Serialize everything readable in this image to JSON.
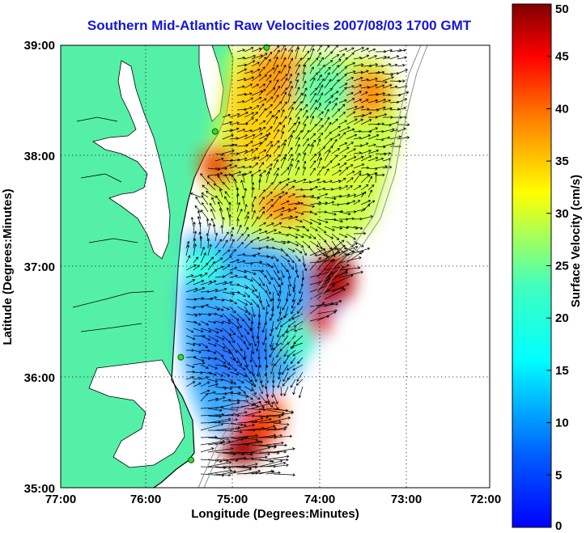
{
  "title": "Southern Mid-Atlantic Raw Velocities 2007/08/03 1700 GMT",
  "map": {
    "xlabel": "Longitude (Degrees:Minutes)",
    "ylabel": "Latitude (Degrees:Minutes)",
    "x_ticks": [
      "77:00",
      "76:00",
      "75:00",
      "74:00",
      "73:00",
      "72:00"
    ],
    "y_ticks": [
      "39:00",
      "38:00",
      "37:00",
      "36:00",
      "35:00"
    ],
    "lon_range": [
      -77,
      -72
    ],
    "lat_range": [
      35,
      39
    ],
    "grid": "dotted",
    "land_color": "#55f0a8",
    "quiver_color": "#000000"
  },
  "colorbar": {
    "label": "Surface Velocity (cm/s)",
    "ticks": [
      "0",
      "5",
      "10",
      "15",
      "20",
      "25",
      "30",
      "35",
      "40",
      "45",
      "50"
    ],
    "range": [
      0,
      50
    ],
    "colormap": "jet"
  },
  "site_markers": [
    {
      "lon": -74.6,
      "lat": 38.98
    },
    {
      "lon": -75.2,
      "lat": 38.22
    },
    {
      "lon": -75.6,
      "lat": 36.18
    },
    {
      "lon": -75.48,
      "lat": 35.25
    }
  ]
}
